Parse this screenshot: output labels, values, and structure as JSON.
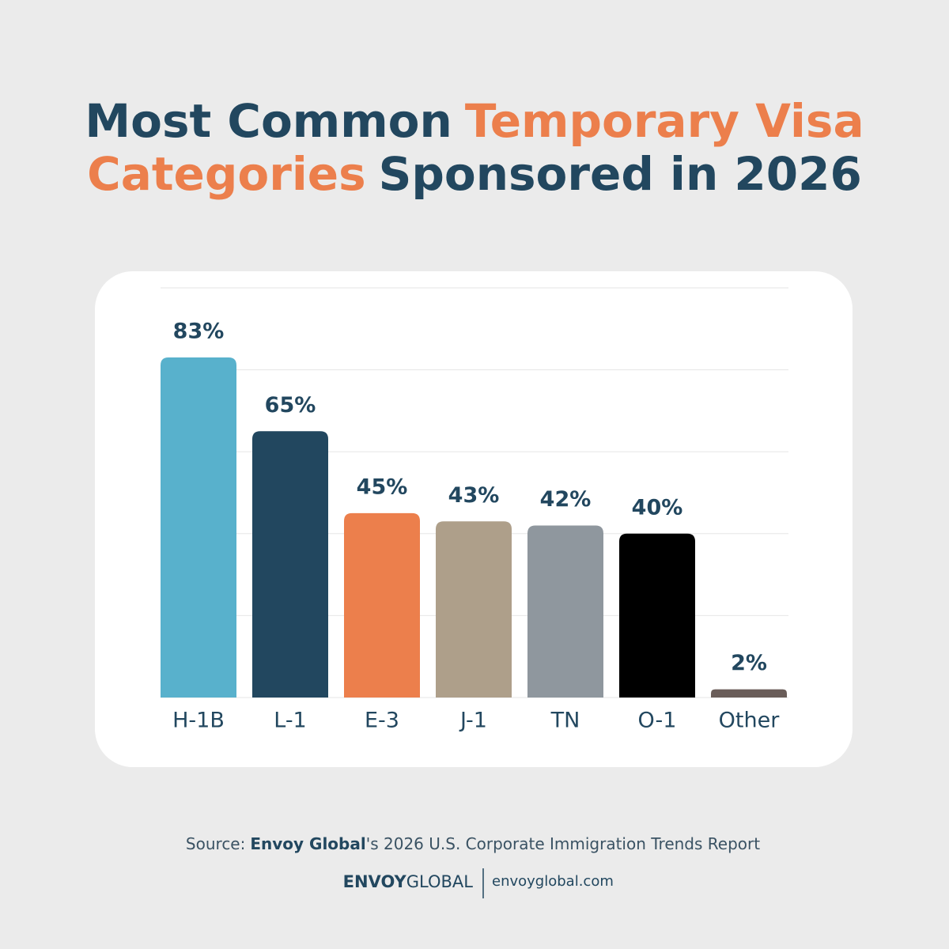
{
  "chart_data": {
    "type": "bar",
    "title_parts": [
      "Most Common",
      "Temporary Visa",
      "Categories",
      "Sponsored in 2026"
    ],
    "title_colors": [
      "#22475f",
      "#ec7f4c",
      "#ec7f4c",
      "#22475f"
    ],
    "categories": [
      "H-1B",
      "L-1",
      "E-3",
      "J-1",
      "TN",
      "O-1",
      "Other"
    ],
    "values": [
      83,
      65,
      45,
      43,
      42,
      40,
      2
    ],
    "value_labels": [
      "83%",
      "65%",
      "45%",
      "43%",
      "42%",
      "40%",
      "2%"
    ],
    "colors": [
      "#58b1cc",
      "#22475f",
      "#ec7f4c",
      "#ae9f8a",
      "#8f979e",
      "#000000",
      "#6a5d59"
    ],
    "ylim": [
      0,
      100
    ],
    "yticks": [
      0,
      20,
      40,
      60,
      80,
      100
    ],
    "grid": true
  },
  "source_parts": [
    "Source:",
    "Envoy Global",
    "'s 2026 U.S. Corporate Immigration Trends Report"
  ],
  "logo": {
    "bold": "ENVOY",
    "regular": "GLOBAL",
    "url": "envoyglobal.com"
  }
}
